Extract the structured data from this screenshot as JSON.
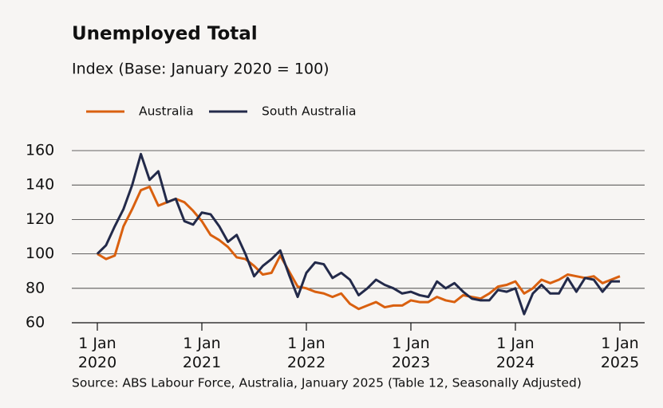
{
  "chart_data": {
    "type": "line",
    "title": "Unemployed Total",
    "subtitle": "Index (Base: January 2020 = 100)",
    "source": "Source: ABS Labour Force, Australia, January 2025 (Table 12, Seasonally Adjusted)",
    "x": [
      "2020-01-01",
      "2020-02-01",
      "2020-03-01",
      "2020-04-01",
      "2020-05-01",
      "2020-06-01",
      "2020-07-01",
      "2020-08-01",
      "2020-09-01",
      "2020-10-01",
      "2020-11-01",
      "2020-12-01",
      "2021-01-01",
      "2021-02-01",
      "2021-03-01",
      "2021-04-01",
      "2021-05-01",
      "2021-06-01",
      "2021-07-01",
      "2021-08-01",
      "2021-09-01",
      "2021-10-01",
      "2021-11-01",
      "2021-12-01",
      "2022-01-01",
      "2022-02-01",
      "2022-03-01",
      "2022-04-01",
      "2022-05-01",
      "2022-06-01",
      "2022-07-01",
      "2022-08-01",
      "2022-09-01",
      "2022-10-01",
      "2022-11-01",
      "2022-12-01",
      "2023-01-01",
      "2023-02-01",
      "2023-03-01",
      "2023-04-01",
      "2023-05-01",
      "2023-06-01",
      "2023-07-01",
      "2023-08-01",
      "2023-09-01",
      "2023-10-01",
      "2023-11-01",
      "2023-12-01",
      "2024-01-01",
      "2024-02-01",
      "2024-03-01",
      "2024-04-01",
      "2024-05-01",
      "2024-06-01",
      "2024-07-01",
      "2024-08-01",
      "2024-09-01",
      "2024-10-01",
      "2024-11-01",
      "2024-12-01",
      "2025-01-01"
    ],
    "series": [
      {
        "name": "Australia",
        "color": "#d9600f",
        "values": [
          100,
          97,
          99,
          116,
          126,
          137,
          139,
          128,
          130,
          132,
          130,
          125,
          119,
          111,
          108,
          104,
          98,
          97,
          93,
          88,
          89,
          99,
          90,
          81,
          80,
          78,
          77,
          75,
          77,
          71,
          68,
          70,
          72,
          69,
          70,
          70,
          73,
          72,
          72,
          75,
          73,
          72,
          76,
          75,
          74,
          77,
          81,
          82,
          84,
          77,
          80,
          85,
          83,
          85,
          88,
          87,
          86,
          87,
          83,
          85,
          87
        ]
      },
      {
        "name": "South Australia",
        "color": "#232a4a",
        "values": [
          100,
          105,
          116,
          126,
          140,
          158,
          143,
          148,
          130,
          132,
          119,
          117,
          124,
          123,
          116,
          107,
          111,
          100,
          87,
          93,
          97,
          102,
          88,
          75,
          89,
          95,
          94,
          86,
          89,
          85,
          76,
          80,
          85,
          82,
          80,
          77,
          78,
          76,
          75,
          84,
          80,
          83,
          78,
          74,
          73,
          73,
          79,
          78,
          80,
          65,
          77,
          82,
          77,
          77,
          86,
          78,
          86,
          85,
          78,
          84,
          84
        ]
      }
    ],
    "xlim": [
      "2020-01-01",
      "2025-01-01"
    ],
    "xticks": [
      {
        "value": "2020-01-01",
        "label": "1 Jan 2020"
      },
      {
        "value": "2021-01-01",
        "label": "1 Jan 2021"
      },
      {
        "value": "2022-01-01",
        "label": "1 Jan 2022"
      },
      {
        "value": "2023-01-01",
        "label": "1 Jan 2023"
      },
      {
        "value": "2024-01-01",
        "label": "1 Jan 2024"
      },
      {
        "value": "2025-01-01",
        "label": "1 Jan 2025"
      }
    ],
    "ylim": [
      60,
      160
    ],
    "yticks": [
      60,
      80,
      100,
      120,
      140,
      160
    ],
    "grid": true
  }
}
